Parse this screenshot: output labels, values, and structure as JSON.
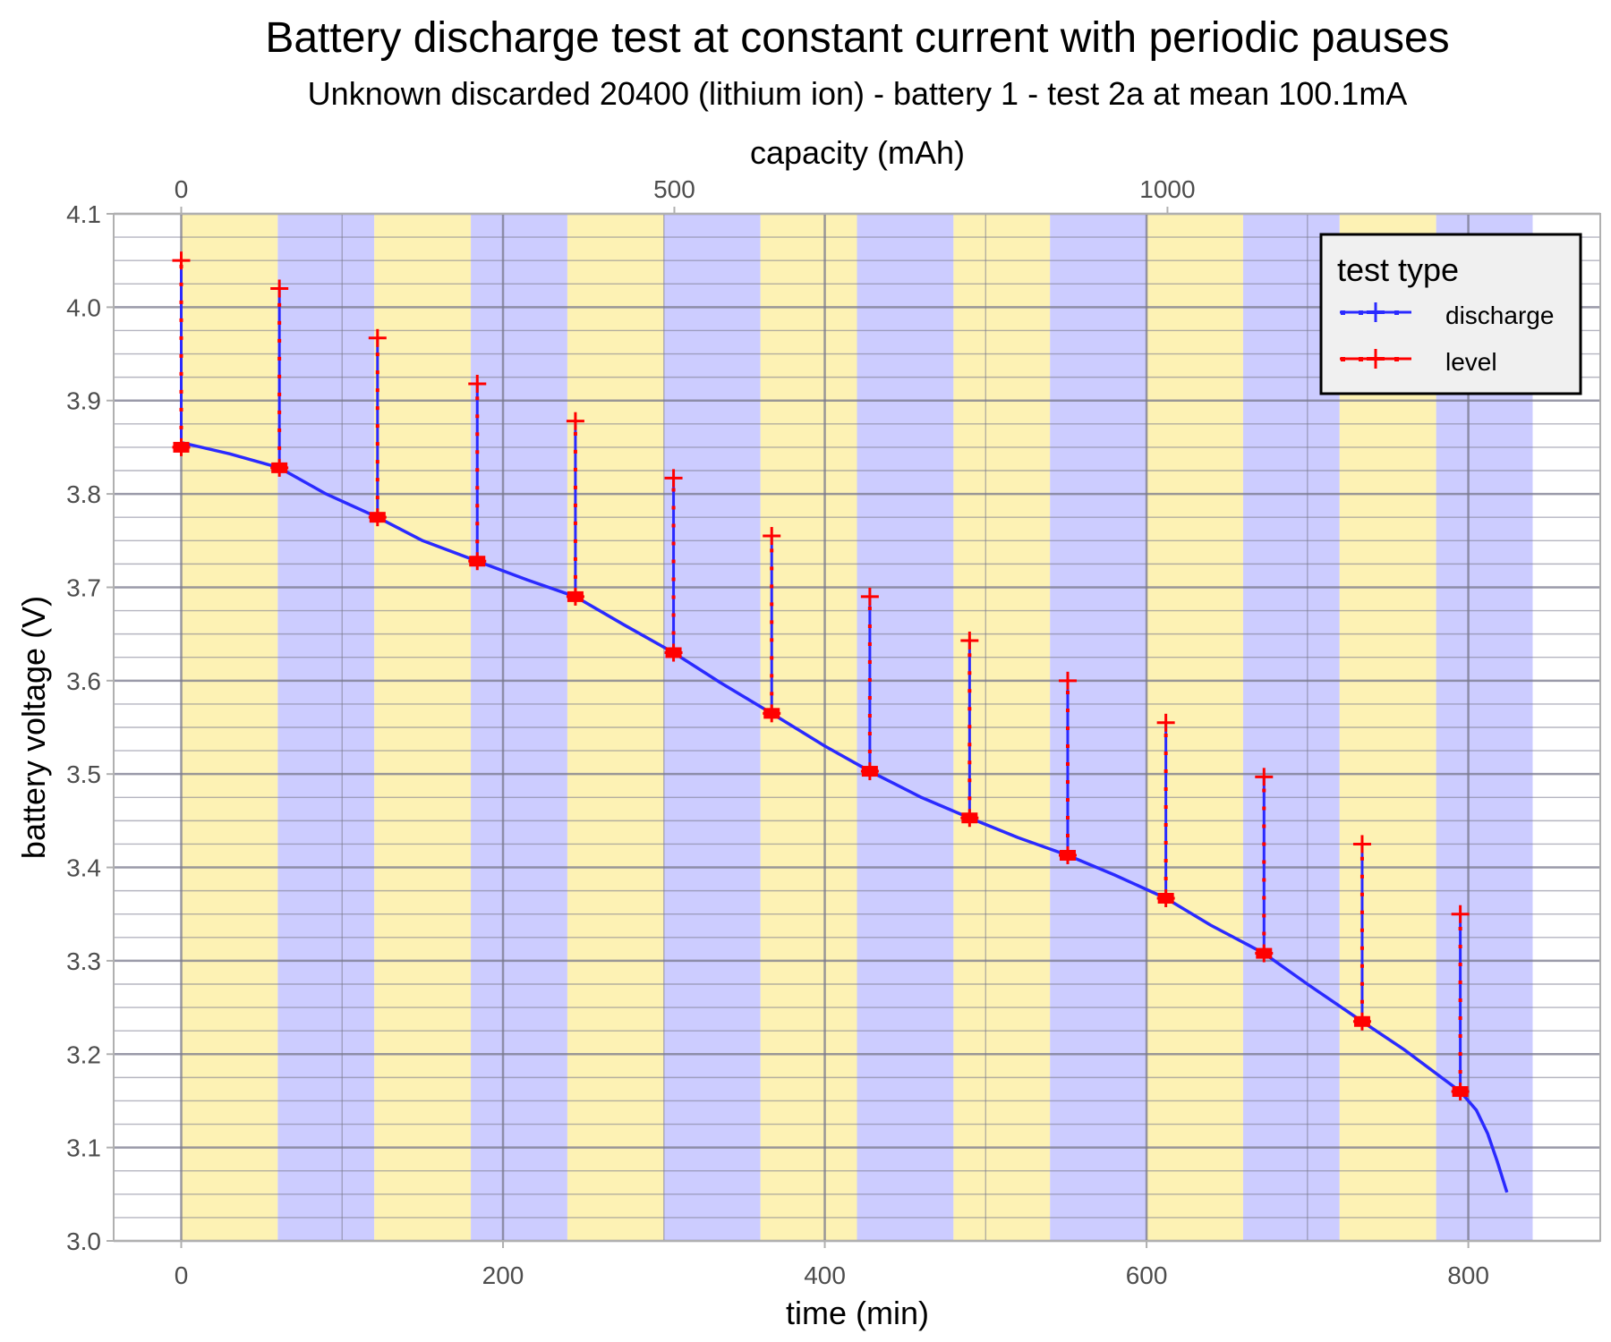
{
  "chart_data": {
    "type": "line",
    "title": "Battery discharge test at constant current with periodic pauses",
    "subtitle": "Unknown discarded 20400 (lithium ion) - battery 1 - test 2a at mean 100.1mA",
    "xlabel": "time (min)",
    "ylabel": "battery voltage (V)",
    "x2label": "capacity (mAh)",
    "xlim": [
      -42,
      882
    ],
    "ylim": [
      3.0,
      4.1
    ],
    "x_ticks": [
      "0",
      "200",
      "400",
      "600",
      "800"
    ],
    "x2_ticks": [
      "0",
      "500",
      "1000"
    ],
    "y_ticks": [
      "3.0",
      "3.1",
      "3.2",
      "3.3",
      "3.4",
      "3.5",
      "3.6",
      "3.7",
      "3.8",
      "3.9",
      "4.0",
      "4.1"
    ],
    "grid": true,
    "legend": {
      "title": "test type",
      "position": "top-right",
      "entries": [
        {
          "label": "discharge",
          "color": "#2a2aff"
        },
        {
          "label": "level",
          "color": "#ff0000"
        }
      ]
    },
    "background_bands": {
      "colors": [
        "#fdf2b4",
        "#ccccff"
      ],
      "edges": [
        0,
        60,
        120,
        180,
        240,
        300,
        360,
        420,
        480,
        540,
        600,
        660,
        720,
        780,
        840
      ]
    },
    "series": [
      {
        "name": "discharge",
        "color": "#2a2aff",
        "x": [
          0,
          30,
          61,
          90,
          122,
          150,
          184,
          215,
          245,
          275,
          306,
          335,
          367,
          400,
          428,
          460,
          490,
          520,
          551,
          580,
          612,
          640,
          673,
          700,
          734,
          760,
          795,
          805,
          812,
          818,
          824
        ],
        "y": [
          3.855,
          3.843,
          3.828,
          3.8,
          3.775,
          3.75,
          3.728,
          3.708,
          3.69,
          3.66,
          3.63,
          3.598,
          3.565,
          3.53,
          3.503,
          3.475,
          3.453,
          3.432,
          3.413,
          3.392,
          3.367,
          3.338,
          3.308,
          3.275,
          3.235,
          3.205,
          3.16,
          3.14,
          3.115,
          3.085,
          3.052
        ]
      },
      {
        "name": "level",
        "color": "#ff0000",
        "x": [
          0,
          61,
          122,
          184,
          245,
          306,
          367,
          428,
          490,
          551,
          612,
          673,
          734,
          795
        ],
        "y_start": [
          3.85,
          3.828,
          3.775,
          3.728,
          3.69,
          3.63,
          3.565,
          3.503,
          3.453,
          3.413,
          3.367,
          3.308,
          3.235,
          3.16
        ],
        "y_end": [
          4.05,
          4.02,
          3.967,
          3.918,
          3.878,
          3.817,
          3.755,
          3.69,
          3.643,
          3.6,
          3.555,
          3.497,
          3.425,
          3.35
        ]
      }
    ]
  }
}
